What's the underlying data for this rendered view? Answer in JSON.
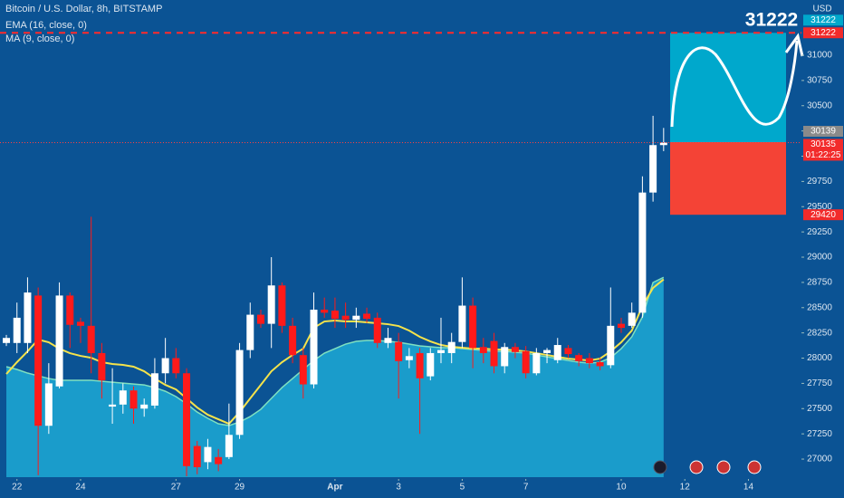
{
  "chart_data": {
    "type": "candlestick",
    "title": "Bitcoin / U.S. Dollar, 8h, BITSTAMP",
    "currency": "USD",
    "up_color": "#ffffff",
    "down_color": "#ff1a1a",
    "ohlc": [
      [
        28150,
        28230,
        28120,
        28200
      ],
      [
        28150,
        28550,
        28050,
        28400
      ],
      [
        28150,
        28800,
        28050,
        28650
      ],
      [
        28620,
        28700,
        26840,
        27330
      ],
      [
        27330,
        27950,
        27250,
        27750
      ],
      [
        27720,
        28750,
        27700,
        28620
      ],
      [
        28620,
        28650,
        28100,
        28330
      ],
      [
        28360,
        28400,
        28150,
        28320
      ],
      [
        28320,
        29400,
        27850,
        28050
      ],
      [
        28050,
        28150,
        27600,
        27780
      ],
      [
        27520,
        27900,
        27350,
        27540
      ],
      [
        27540,
        27750,
        27450,
        27680
      ],
      [
        27680,
        27720,
        27350,
        27500
      ],
      [
        27500,
        27600,
        27420,
        27540
      ],
      [
        27530,
        28000,
        27500,
        27850
      ],
      [
        27850,
        28200,
        27750,
        28000
      ],
      [
        28000,
        28100,
        27800,
        27850
      ],
      [
        27850,
        27900,
        26830,
        26930
      ],
      [
        27130,
        27180,
        26850,
        26920
      ],
      [
        26970,
        27200,
        26900,
        27120
      ],
      [
        27020,
        27100,
        26880,
        26950
      ],
      [
        27020,
        27550,
        27000,
        27240
      ],
      [
        27240,
        28150,
        27200,
        28080
      ],
      [
        28080,
        28550,
        28000,
        28430
      ],
      [
        28430,
        28480,
        28300,
        28340
      ],
      [
        28340,
        29000,
        28100,
        28720
      ],
      [
        28720,
        28750,
        28250,
        28320
      ],
      [
        28320,
        28400,
        27950,
        28030
      ],
      [
        28030,
        28100,
        27600,
        27740
      ],
      [
        27740,
        28650,
        27700,
        28480
      ],
      [
        28480,
        28600,
        28400,
        28450
      ],
      [
        28470,
        28600,
        28300,
        28390
      ],
      [
        28420,
        28550,
        28300,
        28380
      ],
      [
        28380,
        28500,
        28300,
        28420
      ],
      [
        28440,
        28500,
        28350,
        28390
      ],
      [
        28400,
        28450,
        28100,
        28150
      ],
      [
        28150,
        28300,
        28100,
        28200
      ],
      [
        28160,
        28250,
        27600,
        27970
      ],
      [
        27980,
        28100,
        27900,
        28020
      ],
      [
        28050,
        28100,
        27250,
        27800
      ],
      [
        27820,
        28100,
        27780,
        28050
      ],
      [
        28050,
        28400,
        27950,
        28080
      ],
      [
        28050,
        28250,
        27950,
        28160
      ],
      [
        28160,
        28800,
        28100,
        28520
      ],
      [
        28520,
        28600,
        27900,
        28100
      ],
      [
        28110,
        28200,
        27950,
        28050
      ],
      [
        28170,
        28250,
        27850,
        27920
      ],
      [
        27920,
        28150,
        27850,
        28110
      ],
      [
        28110,
        28150,
        28000,
        28060
      ],
      [
        28070,
        28120,
        27800,
        27850
      ],
      [
        27850,
        28100,
        27830,
        28050
      ],
      [
        28050,
        28100,
        27950,
        28080
      ],
      [
        27980,
        28200,
        27950,
        28130
      ],
      [
        28100,
        28130,
        28000,
        28040
      ],
      [
        28030,
        28050,
        27920,
        27970
      ],
      [
        28000,
        28050,
        27900,
        27950
      ],
      [
        27960,
        28000,
        27880,
        27920
      ],
      [
        27930,
        28700,
        27900,
        28320
      ],
      [
        28340,
        28400,
        28250,
        28300
      ],
      [
        28320,
        28550,
        28300,
        28450
      ],
      [
        28450,
        29800,
        28400,
        29640
      ],
      [
        29640,
        30400,
        29550,
        30110
      ],
      [
        30110,
        30280,
        30050,
        30135
      ]
    ],
    "series": [
      {
        "name": "EMA (16, close, 0)",
        "color": "#7fe0c0",
        "fill": "#1a9ccb",
        "values": [
          27915,
          27888,
          27852,
          27825,
          27798,
          27781,
          27781,
          27781,
          27781,
          27771,
          27762,
          27753,
          27744,
          27735,
          27708,
          27672,
          27619,
          27547,
          27466,
          27404,
          27350,
          27332,
          27368,
          27421,
          27493,
          27601,
          27708,
          27798,
          27888,
          27977,
          28049,
          28094,
          28139,
          28166,
          28175,
          28175,
          28166,
          28157,
          28139,
          28121,
          28112,
          28103,
          28103,
          28094,
          28085,
          28076,
          28067,
          28067,
          28058,
          28049,
          28031,
          28013,
          27995,
          27977,
          27960,
          27951,
          27960,
          28004,
          28094,
          28211,
          28408,
          28749,
          28800
        ]
      },
      {
        "name": "MA (9, close, 0)",
        "color": "#f5e34b",
        "values": [
          27843,
          27960,
          28067,
          28184,
          28157,
          28094,
          28049,
          28022,
          28004,
          27960,
          27942,
          27933,
          27915,
          27870,
          27798,
          27735,
          27690,
          27601,
          27511,
          27439,
          27394,
          27350,
          27466,
          27601,
          27735,
          27870,
          27960,
          28031,
          28094,
          28300,
          28363,
          28372,
          28363,
          28363,
          28354,
          28345,
          28336,
          28318,
          28273,
          28211,
          28166,
          28130,
          28112,
          28103,
          28094,
          28094,
          28085,
          28085,
          28076,
          28067,
          28049,
          28031,
          28013,
          27995,
          27986,
          27977,
          27995,
          28067,
          28157,
          28273,
          28516,
          28695,
          28780
        ]
      }
    ],
    "xlim": [
      -0.6,
      75
    ],
    "xticks": [
      {
        "value": 1,
        "label": "22"
      },
      {
        "value": 7,
        "label": "24"
      },
      {
        "value": 16,
        "label": "27"
      },
      {
        "value": 22,
        "label": "29"
      },
      {
        "value": 31,
        "label": "Apr"
      },
      {
        "value": 37,
        "label": "3"
      },
      {
        "value": 43,
        "label": "5"
      },
      {
        "value": 49,
        "label": "7"
      },
      {
        "value": 58,
        "label": "10"
      },
      {
        "value": 64,
        "label": "12"
      },
      {
        "value": 70,
        "label": "14"
      }
    ],
    "ylim": [
      26821,
      31547
    ],
    "yticks": [
      27000,
      27250,
      27500,
      27750,
      28000,
      28250,
      28500,
      28750,
      29000,
      29250,
      29500,
      29750,
      30000,
      30250,
      30500,
      30750,
      31000
    ],
    "position": {
      "target": 31222,
      "entry": 30139,
      "stop": 29420
    },
    "last_price": 30135,
    "countdown": "01:22:25"
  }
}
